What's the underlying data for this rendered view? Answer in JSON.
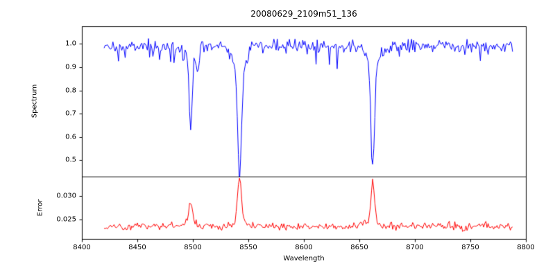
{
  "chart_data": [
    {
      "type": "line",
      "name": "spectrum",
      "title": "20080629_2109m51_136",
      "xlabel": "Wavelength",
      "ylabel": "Spectrum",
      "color": "#0000ff",
      "xlim": [
        8400,
        8800
      ],
      "ylim": [
        0.43,
        1.075
      ],
      "x_ticks": [
        8400,
        8450,
        8500,
        8550,
        8600,
        8650,
        8700,
        8750,
        8800
      ],
      "y_tick_values": [
        1.0,
        0.9,
        0.8,
        0.7,
        0.6,
        0.5
      ],
      "y_tick_labels": [
        "1.0",
        "0.9",
        "0.8",
        "0.7",
        "0.6",
        "0.5"
      ],
      "x_data_range": [
        8420,
        8788
      ],
      "x_step": 1,
      "continuum": 0.99,
      "noise_sigma": 0.013,
      "dip_probability": 0.1,
      "dip_max": 0.07,
      "clip_max": 1.045,
      "noise_seed": 20080629,
      "grid": false,
      "legend": null,
      "absorption_lines": [
        {
          "center": 8498.0,
          "core_depth": 0.3,
          "core_width": 1.3,
          "wing_depth": 0.055,
          "wing_width": 4.5,
          "min_value": 0.64
        },
        {
          "center": 8504.5,
          "core_depth": 0.09,
          "core_width": 1.2,
          "wing_depth": 0.0,
          "wing_width": 3.0,
          "min_value": 0.88
        },
        {
          "center": 8542.1,
          "core_depth": 0.45,
          "core_width": 1.7,
          "wing_depth": 0.1,
          "wing_width": 5.5,
          "min_value": 0.44
        },
        {
          "center": 8662.1,
          "core_depth": 0.43,
          "core_width": 1.6,
          "wing_depth": 0.09,
          "wing_width": 5.5,
          "min_value": 0.47
        }
      ]
    },
    {
      "type": "line",
      "name": "error",
      "ylabel": "Error",
      "color": "#ff0000",
      "xlim": [
        8400,
        8800
      ],
      "ylim": [
        0.0209,
        0.0341
      ],
      "y_tick_values": [
        0.03,
        0.025
      ],
      "y_tick_labels": [
        "0.030",
        "0.025"
      ],
      "baseline": 0.0235,
      "noise_sigma": 0.0004,
      "bump_probability": 0.08,
      "bump_max": 0.0008,
      "noise_seed": 2109,
      "grid": false,
      "peaks": [
        {
          "center": 8498.0,
          "amplitude": 0.0042,
          "width": 1.6,
          "wing_amplitude": 0.0007,
          "wing_width": 5.0,
          "peak_value": 0.028
        },
        {
          "center": 8542.1,
          "amplitude": 0.009,
          "width": 1.8,
          "wing_amplitude": 0.0009,
          "wing_width": 6.0,
          "peak_value": 0.0327
        },
        {
          "center": 8662.1,
          "amplitude": 0.0092,
          "width": 1.6,
          "wing_amplitude": 0.0009,
          "wing_width": 6.0,
          "peak_value": 0.0329
        }
      ]
    }
  ]
}
